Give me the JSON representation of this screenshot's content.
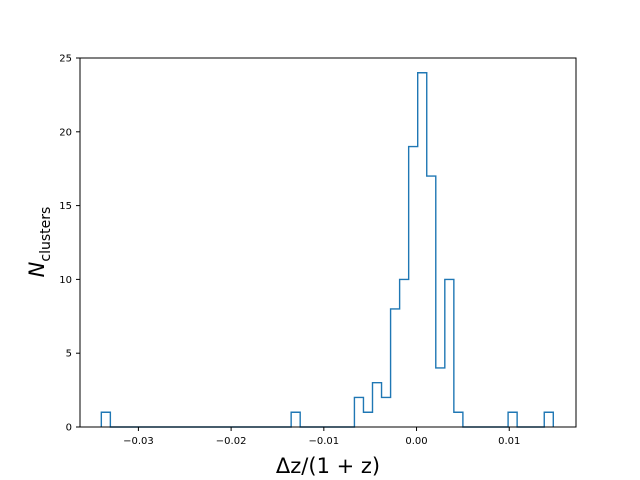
{
  "chart_data": {
    "type": "histogram",
    "title": "",
    "xlabel": "Δz/(1 + z)",
    "ylabel": "N",
    "ylabel_subscript": "clusters",
    "xlim": [
      -0.0363,
      0.0172
    ],
    "ylim": [
      0,
      25
    ],
    "grid": false,
    "legend": "none",
    "series_color": "#1f77b4",
    "xticks": [
      -0.03,
      -0.02,
      -0.01,
      0.0,
      0.01
    ],
    "xtick_labels": [
      "−0.03",
      "−0.02",
      "−0.01",
      "0.00",
      "0.01"
    ],
    "yticks": [
      0,
      5,
      10,
      15,
      20,
      25
    ],
    "ytick_labels": [
      "0",
      "5",
      "10",
      "15",
      "20",
      "25"
    ],
    "bins": {
      "start": -0.034,
      "width": 0.000975,
      "counts": [
        1,
        0,
        0,
        0,
        0,
        0,
        0,
        0,
        0,
        0,
        0,
        0,
        0,
        0,
        0,
        0,
        0,
        0,
        0,
        0,
        0,
        1,
        0,
        0,
        0,
        0,
        0,
        0,
        2,
        1,
        3,
        2,
        8,
        10,
        19,
        24,
        17,
        4,
        10,
        1,
        0,
        0,
        0,
        0,
        0,
        1,
        0,
        0,
        0,
        1
      ]
    }
  }
}
